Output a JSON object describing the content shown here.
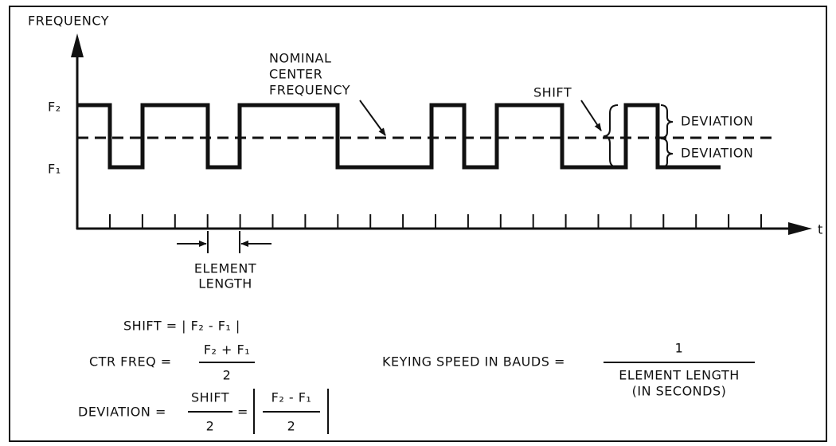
{
  "axes": {
    "y_label": "FREQUENCY",
    "x_label": "t"
  },
  "levels": {
    "f2": "F₂",
    "f1": "F₁"
  },
  "annotations": {
    "nominal_center_frequency": [
      "NOMINAL",
      "CENTER",
      "FREQUENCY"
    ],
    "shift": "SHIFT",
    "deviation_upper": "DEVIATION",
    "deviation_lower": "DEVIATION",
    "element_length": [
      "ELEMENT",
      "LENGTH"
    ]
  },
  "formulas": {
    "shift": "SHIFT = | F₂ - F₁ |",
    "ctr_freq": {
      "label": "CTR FREQ =",
      "numerator": "F₂ + F₁",
      "denominator": "2"
    },
    "deviation": {
      "label": "DEVIATION =",
      "numerator": "SHIFT",
      "denominator": "2",
      "equals": "=",
      "abs_numerator": "F₂ - F₁",
      "abs_denominator": "2"
    },
    "keying_speed": {
      "label": "KEYING SPEED IN BAUDS =",
      "numerator": "1",
      "denominator": [
        "ELEMENT LENGTH",
        "(IN SECONDS)"
      ]
    }
  }
}
